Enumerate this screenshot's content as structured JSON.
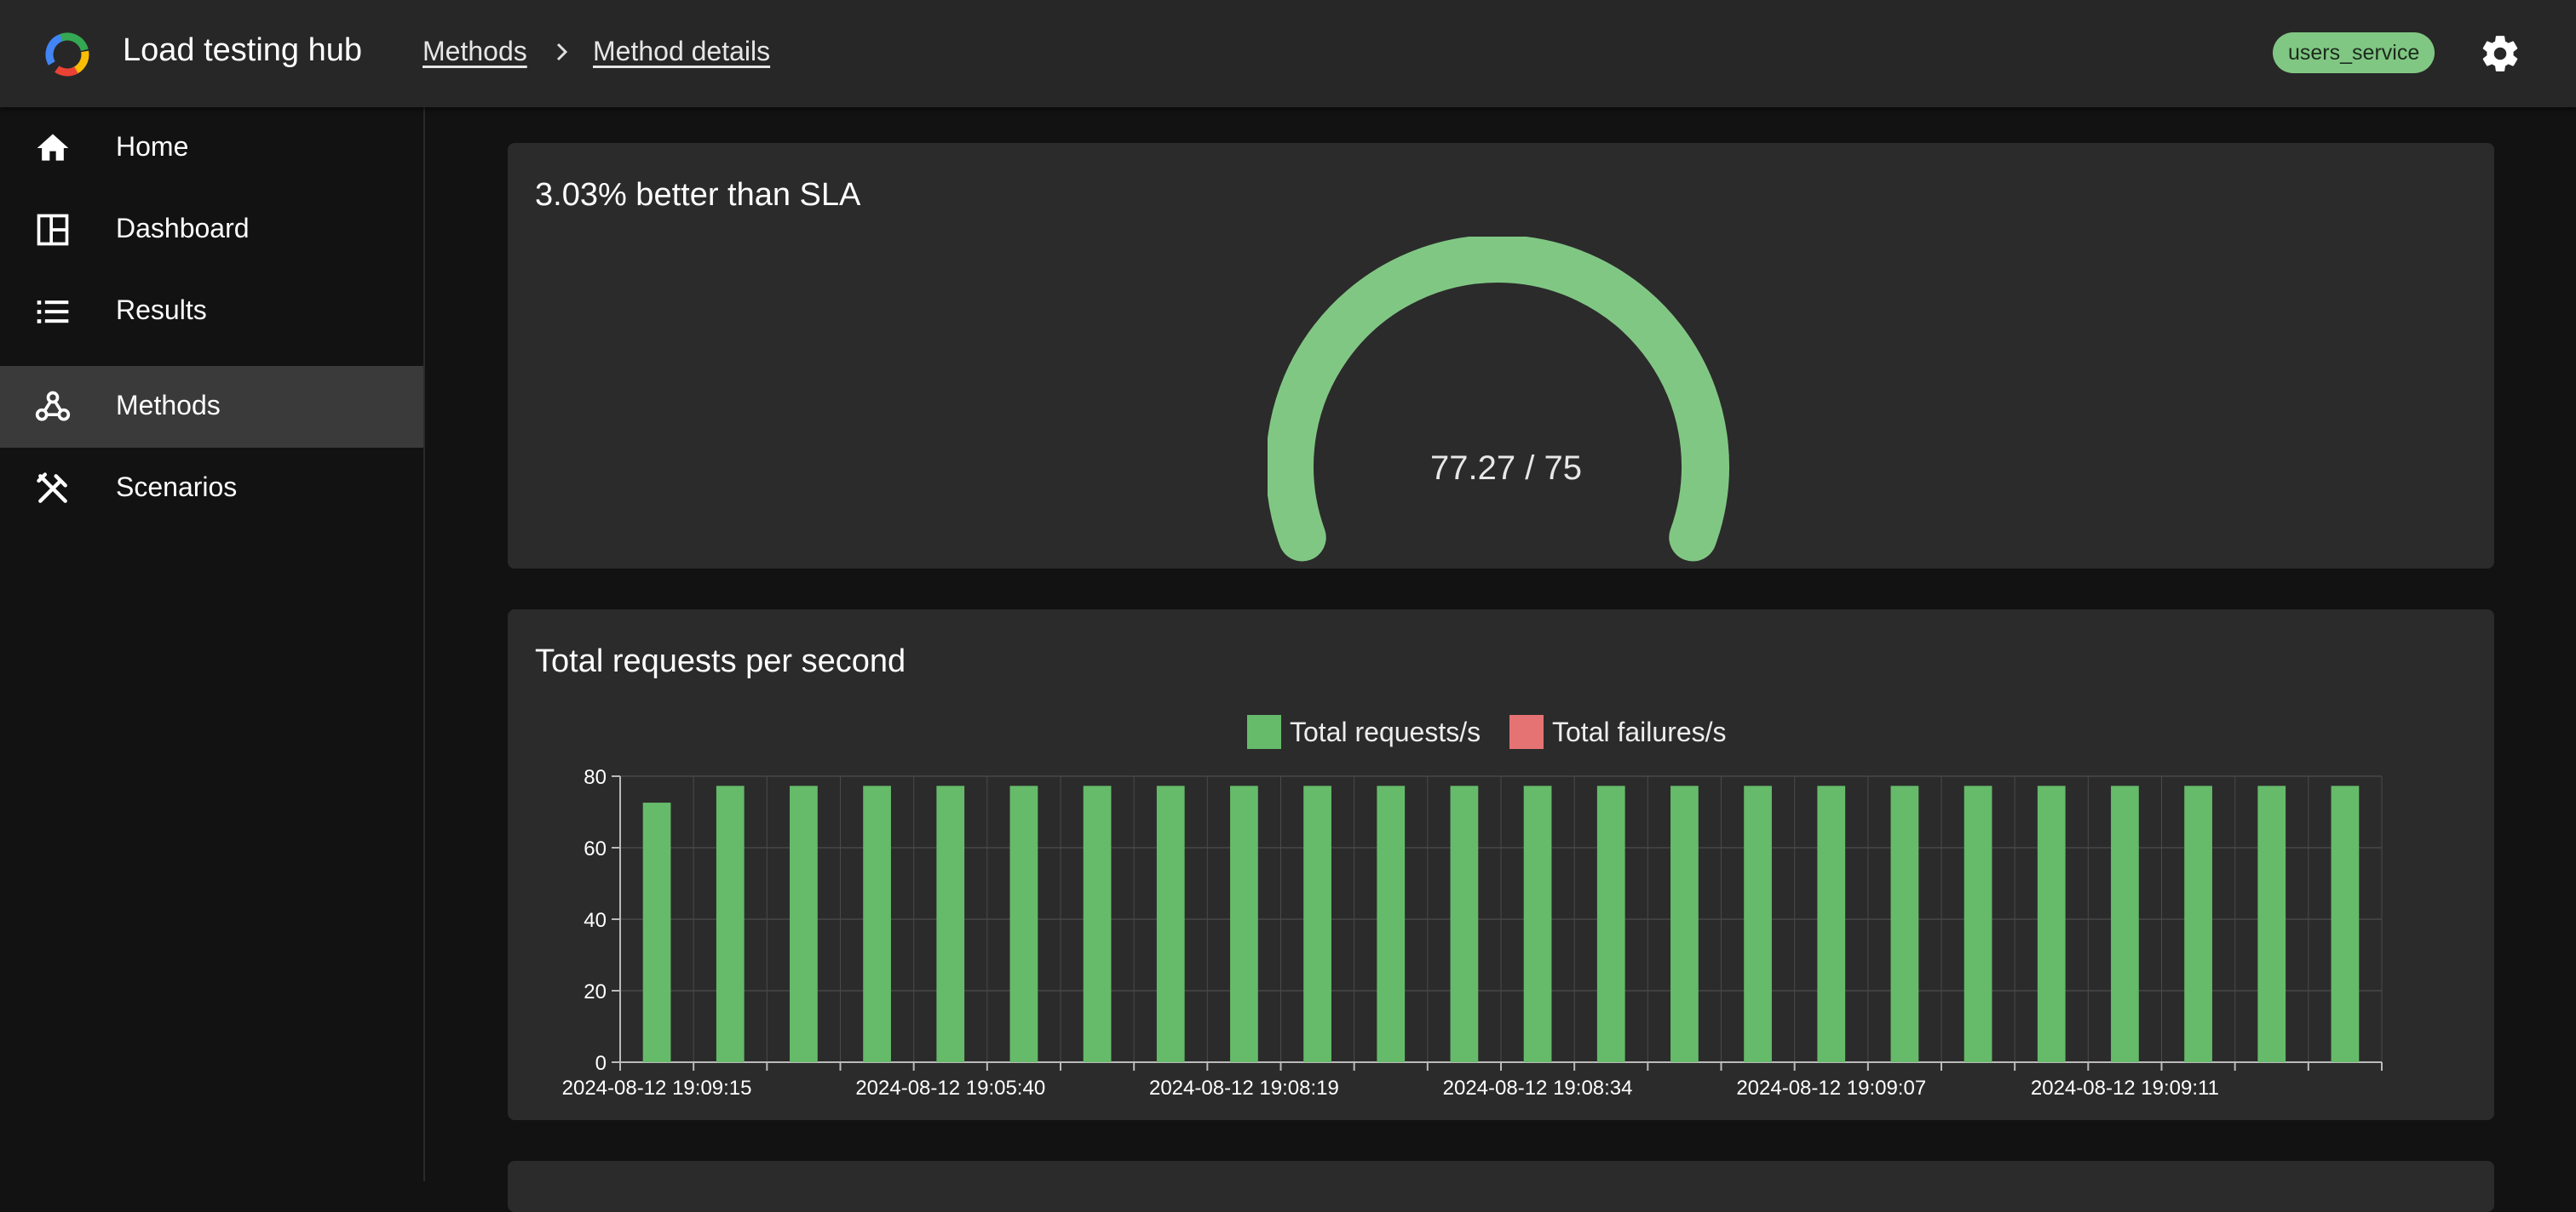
{
  "app": {
    "title": "Load testing hub"
  },
  "breadcrumb": {
    "items": [
      "Methods",
      "Method details"
    ]
  },
  "header": {
    "service_chip": "users_service"
  },
  "colors": {
    "accent_green": "#81c784",
    "bar_green": "#66bb6a",
    "failure_red": "#e57373"
  },
  "sidebar": {
    "items": [
      {
        "label": "Home",
        "icon": "home-icon",
        "active": false
      },
      {
        "label": "Dashboard",
        "icon": "dashboard-icon",
        "active": false
      },
      {
        "label": "Results",
        "icon": "list-icon",
        "active": false
      },
      {
        "label": "Methods",
        "icon": "webhook-icon",
        "active": true
      },
      {
        "label": "Scenarios",
        "icon": "tools-icon",
        "active": false
      }
    ]
  },
  "sla_card": {
    "title": "3.03% better than SLA",
    "gauge": {
      "value_text": "77.27 / 75",
      "value": 77.27,
      "target": 75,
      "fill_fraction": 1.0
    }
  },
  "rps_card": {
    "title": "Total requests per second"
  },
  "chart_data": {
    "type": "bar",
    "title": "Total requests per second",
    "xlabel": "",
    "ylabel": "",
    "ylim": [
      0,
      80
    ],
    "yticks": [
      0,
      20,
      40,
      60,
      80
    ],
    "grid": true,
    "legend_position": "top-center",
    "x_tick_labels": [
      "2024-08-12 19:09:15",
      "2024-08-12 19:05:40",
      "2024-08-12 19:08:19",
      "2024-08-12 19:08:34",
      "2024-08-12 19:09:07",
      "2024-08-12 19:09:11"
    ],
    "x_tick_label_every": 4,
    "bar_count": 24,
    "series": [
      {
        "name": "Total requests/s",
        "color": "#66bb6a",
        "values": [
          72.6,
          77.3,
          77.3,
          77.3,
          77.3,
          77.3,
          77.3,
          77.3,
          77.3,
          77.3,
          77.3,
          77.3,
          77.3,
          77.3,
          77.3,
          77.3,
          77.3,
          77.3,
          77.3,
          77.3,
          77.3,
          77.3,
          77.3,
          77.3
        ]
      },
      {
        "name": "Total failures/s",
        "color": "#e57373",
        "values": [
          0,
          0,
          0,
          0,
          0,
          0,
          0,
          0,
          0,
          0,
          0,
          0,
          0,
          0,
          0,
          0,
          0,
          0,
          0,
          0,
          0,
          0,
          0,
          0
        ]
      }
    ]
  }
}
